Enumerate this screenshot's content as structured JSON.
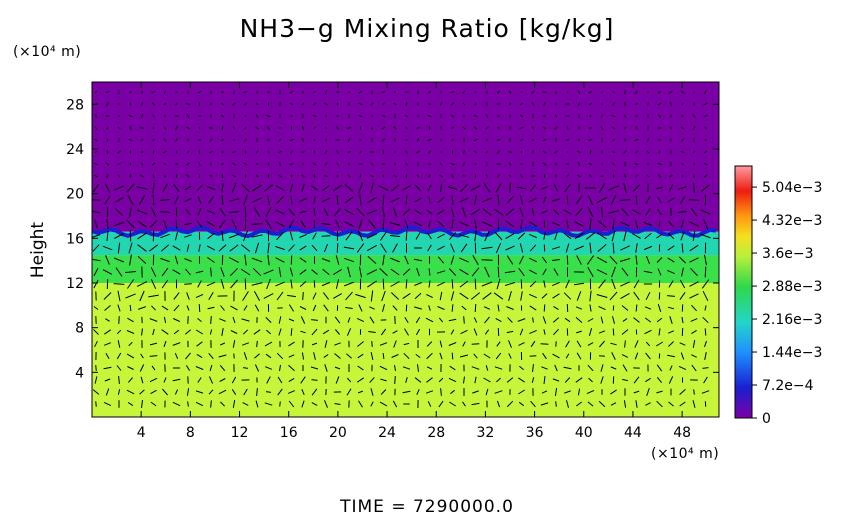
{
  "chart_data": {
    "type": "heatmap",
    "title": "NH3−g Mixing Ratio [kg/kg]",
    "xlabel": "",
    "ylabel": "Height",
    "x_unit": "(×10⁴ m)",
    "y_unit": "(×10⁴ m)",
    "xlim": [
      0,
      51
    ],
    "ylim": [
      0,
      30
    ],
    "x_ticks": [
      4,
      8,
      12,
      16,
      20,
      24,
      28,
      32,
      36,
      40,
      44,
      48
    ],
    "y_ticks": [
      4,
      8,
      12,
      16,
      20,
      24,
      28
    ],
    "x_tick_labels": [
      "4",
      "8",
      "12",
      "16",
      "20",
      "24",
      "28",
      "32",
      "36",
      "40",
      "44",
      "48"
    ],
    "y_tick_labels": [
      "4",
      "8",
      "12",
      "16",
      "20",
      "24",
      "28"
    ],
    "colorbar": {
      "min": 0,
      "max": 0.0055,
      "tick_values": [
        0,
        0.00072,
        0.00144,
        0.00216,
        0.00288,
        0.0036,
        0.00432,
        0.00504
      ],
      "tick_labels": [
        "0",
        "7.2e−4",
        "1.44e−3",
        "2.16e−3",
        "2.88e−3",
        "3.6e−3",
        "4.32e−3",
        "5.04e−3"
      ]
    },
    "bands": [
      {
        "y_from": 0,
        "y_to": 12,
        "value": 0.0036,
        "color": "#c6f53a"
      },
      {
        "y_from": 12,
        "y_to": 14.5,
        "value": 0.0029,
        "color": "#39e04a"
      },
      {
        "y_from": 14.5,
        "y_to": 16.6,
        "value": 0.0022,
        "color": "#22d6b2"
      },
      {
        "y_from": 16.6,
        "y_to": 30,
        "value": 0,
        "color": "#7a00a6"
      }
    ],
    "overlay": "wind vector field (arrows)",
    "time_label": "TIME",
    "time_value": "7290000.0"
  }
}
